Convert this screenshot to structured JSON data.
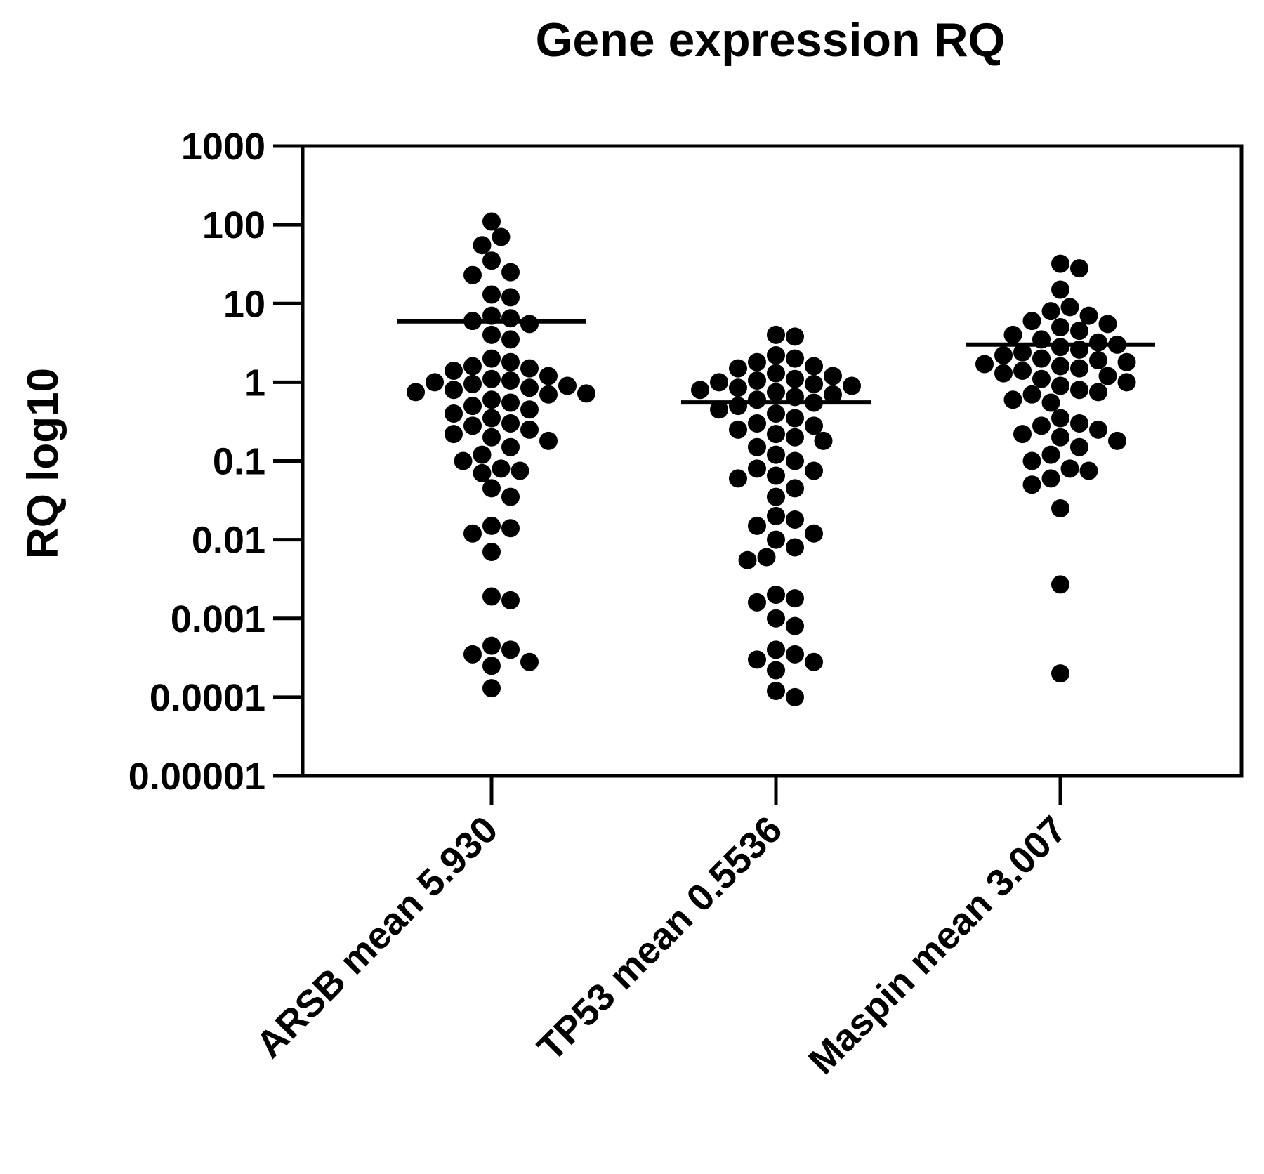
{
  "chart_data": {
    "type": "scatter",
    "title": "Gene expression RQ",
    "ylabel": "RQ log10",
    "xlabel": "",
    "yscale": "log10",
    "ylim": [
      1e-05,
      1000
    ],
    "grid": false,
    "yticks": [
      "0.00001",
      "0.0001",
      "0.001",
      "0.01",
      "0.1",
      "1",
      "10",
      "100",
      "1000"
    ],
    "categories": [
      "ARSB mean 5.930",
      "TP53 mean 0.5536",
      "Maspin mean 3.007"
    ],
    "colors": {
      "points": "#000000",
      "axis": "#000000"
    },
    "series": [
      {
        "category": "ARSB mean 5.930",
        "mean": 5.93,
        "values": [
          110,
          70,
          55,
          35,
          25,
          23,
          13,
          12,
          7,
          6.5,
          6,
          5.5,
          4,
          3.5,
          2,
          1.8,
          1.6,
          1.5,
          1.4,
          1.2,
          1.1,
          1.05,
          1.0,
          0.95,
          0.9,
          0.85,
          0.8,
          0.75,
          0.72,
          0.7,
          0.6,
          0.55,
          0.5,
          0.45,
          0.4,
          0.35,
          0.3,
          0.28,
          0.25,
          0.22,
          0.2,
          0.18,
          0.15,
          0.12,
          0.1,
          0.08,
          0.075,
          0.07,
          0.045,
          0.035,
          0.015,
          0.014,
          0.012,
          0.007,
          0.0019,
          0.0017,
          0.00045,
          0.0004,
          0.00035,
          0.00028,
          0.00025,
          0.00013
        ]
      },
      {
        "category": "TP53 mean 0.5536",
        "mean": 0.5536,
        "values": [
          4,
          3.8,
          2.2,
          2,
          1.8,
          1.6,
          1.5,
          1.3,
          1.2,
          1.1,
          1.05,
          1.0,
          0.95,
          0.9,
          0.85,
          0.8,
          0.75,
          0.7,
          0.65,
          0.6,
          0.55,
          0.5,
          0.45,
          0.4,
          0.35,
          0.3,
          0.28,
          0.25,
          0.22,
          0.2,
          0.18,
          0.15,
          0.12,
          0.1,
          0.08,
          0.075,
          0.065,
          0.06,
          0.045,
          0.035,
          0.02,
          0.018,
          0.015,
          0.012,
          0.01,
          0.008,
          0.006,
          0.0055,
          0.002,
          0.0018,
          0.0016,
          0.001,
          0.0008,
          0.0004,
          0.00035,
          0.0003,
          0.00028,
          0.00022,
          0.00012,
          0.0001
        ]
      },
      {
        "category": "Maspin mean 3.007",
        "mean": 3.007,
        "values": [
          32,
          28,
          15,
          9,
          8,
          7,
          6,
          5.5,
          5,
          4.5,
          4,
          3.5,
          3.2,
          3,
          2.8,
          2.6,
          2.4,
          2.2,
          2,
          1.9,
          1.8,
          1.7,
          1.6,
          1.5,
          1.4,
          1.3,
          1.2,
          1.1,
          1.0,
          0.9,
          0.8,
          0.75,
          0.7,
          0.6,
          0.55,
          0.35,
          0.3,
          0.28,
          0.25,
          0.22,
          0.2,
          0.18,
          0.15,
          0.12,
          0.1,
          0.08,
          0.075,
          0.06,
          0.05,
          0.025,
          0.0027,
          0.0002
        ]
      }
    ]
  }
}
